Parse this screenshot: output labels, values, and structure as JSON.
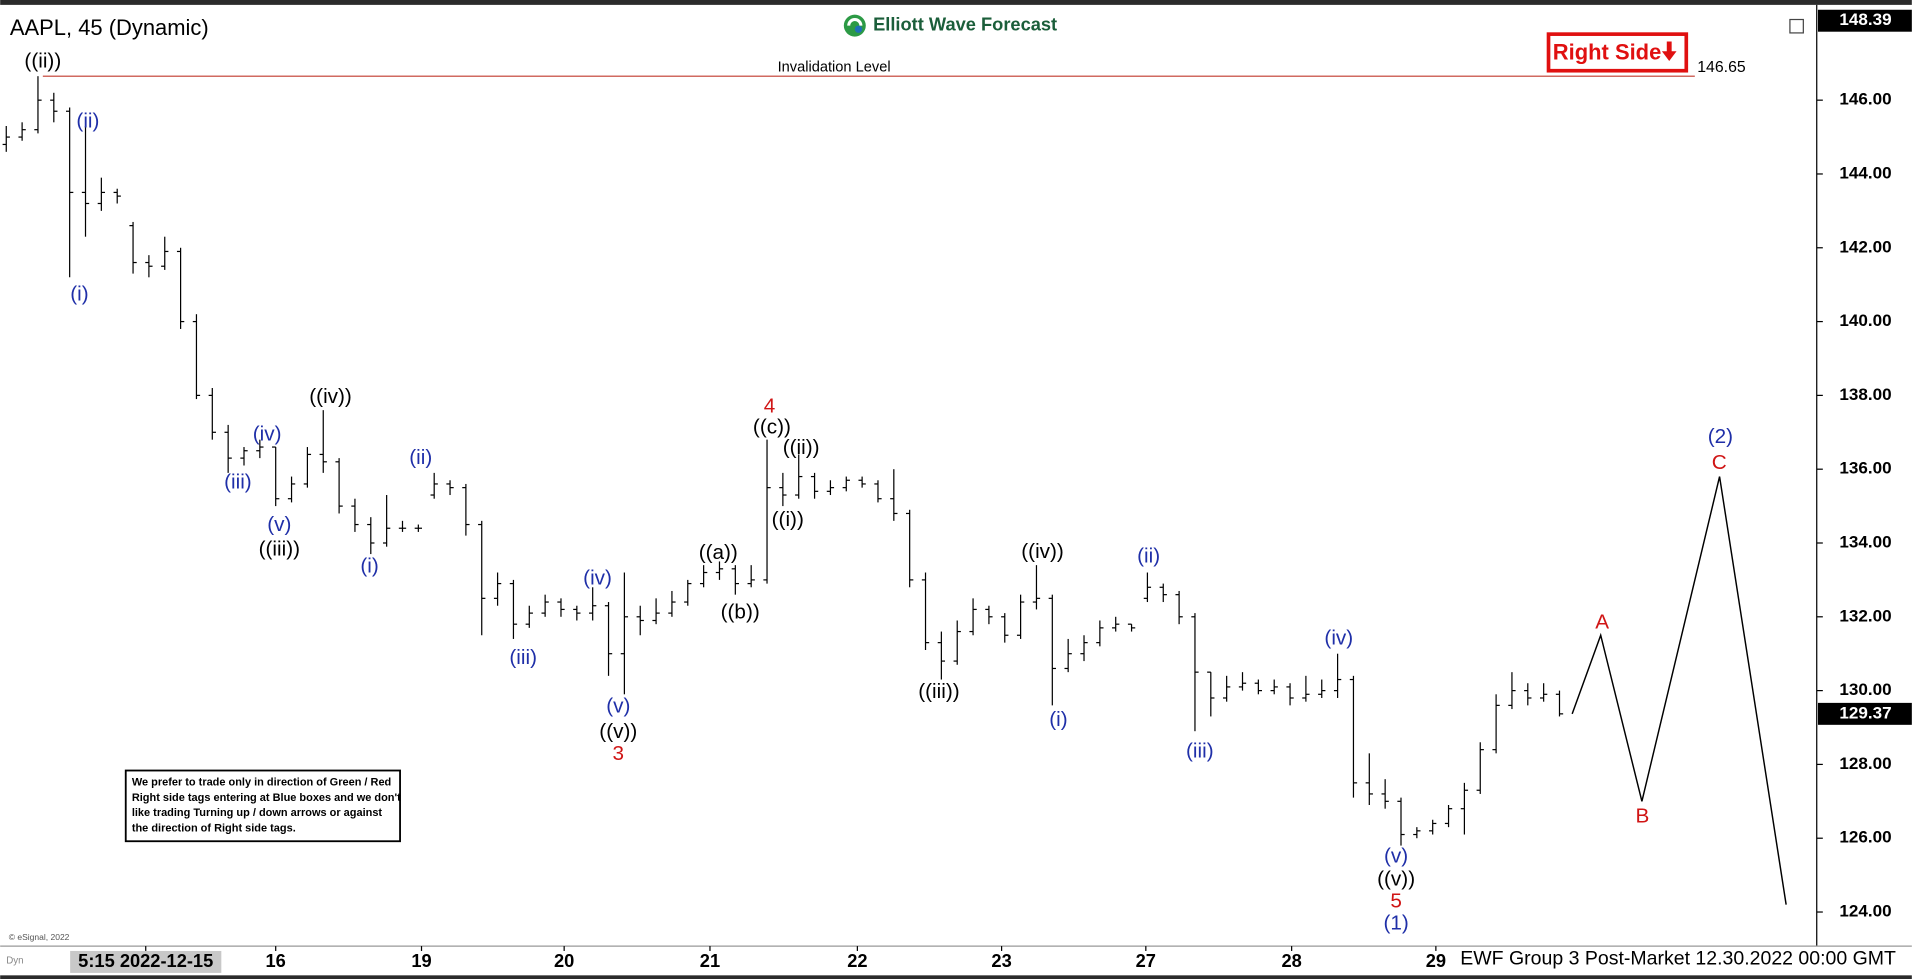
{
  "chart_data": {
    "type": "ohlc",
    "title": "AAPL, 45 (Dynamic)",
    "brand": "Elliott Wave Forecast",
    "tag": "Right Side",
    "footer": "EWF Group 3 Post-Market 12.30.2022 00:00 GMT",
    "copyright": "© eSignal, 2022",
    "corner": "Dyn",
    "note": [
      "We prefer to trade only in direction of Green / Red",
      "Right side tags entering at Blue boxes and we don't",
      "like trading Turning up / down arrows or against",
      "the direction of Right side tags."
    ],
    "bar_color": "#000000",
    "xlim": [
      0,
      114
    ],
    "ylim": [
      123.11,
      148.45
    ],
    "xticks": [
      {
        "value": 8.8,
        "label": "5:15 2022-12-15"
      },
      {
        "value": 17,
        "label": "16"
      },
      {
        "value": 26.2,
        "label": "19"
      },
      {
        "value": 35.2,
        "label": "20"
      },
      {
        "value": 44.4,
        "label": "21"
      },
      {
        "value": 53.7,
        "label": "22"
      },
      {
        "value": 62.8,
        "label": "23"
      },
      {
        "value": 71.9,
        "label": "27"
      },
      {
        "value": 81.1,
        "label": "28"
      },
      {
        "value": 90.2,
        "label": "29"
      }
    ],
    "yticks": [
      {
        "value": 124,
        "label": "124.00"
      },
      {
        "value": 126,
        "label": "126.00"
      },
      {
        "value": 128,
        "label": "128.00"
      },
      {
        "value": 130,
        "label": "130.00"
      },
      {
        "value": 132,
        "label": "132.00"
      },
      {
        "value": 134,
        "label": "134.00"
      },
      {
        "value": 136,
        "label": "136.00"
      },
      {
        "value": 138,
        "label": "138.00"
      },
      {
        "value": 140,
        "label": "140.00"
      },
      {
        "value": 142,
        "label": "142.00"
      },
      {
        "value": 144,
        "label": "144.00"
      },
      {
        "value": 146,
        "label": "146.00"
      }
    ],
    "price_markers": [
      148.39,
      129.37
    ],
    "invalidation": {
      "label": "Invalidation Level",
      "value": 146.65,
      "color": "#c0392b"
    },
    "bars": [
      [
        144.8,
        145.3,
        144.6,
        145.0
      ],
      [
        145.0,
        145.4,
        144.9,
        145.2
      ],
      [
        145.2,
        146.65,
        145.1,
        146.0
      ],
      [
        146.0,
        146.2,
        145.4,
        145.7
      ],
      [
        145.7,
        145.8,
        141.2,
        143.5
      ],
      [
        143.5,
        145.3,
        142.3,
        143.2
      ],
      [
        143.2,
        143.9,
        143.0,
        143.5
      ],
      [
        143.5,
        143.6,
        143.2,
        143.4
      ],
      [
        142.6,
        142.7,
        141.3,
        141.6
      ],
      [
        141.6,
        141.8,
        141.2,
        141.5
      ],
      [
        141.5,
        142.3,
        141.4,
        141.9
      ],
      [
        141.9,
        142.0,
        139.8,
        140.0
      ],
      [
        140.0,
        140.2,
        137.9,
        138.0
      ],
      [
        138.0,
        138.2,
        136.8,
        137.0
      ],
      [
        137.0,
        137.2,
        135.9,
        136.3
      ],
      [
        136.3,
        136.6,
        136.1,
        136.5
      ],
      [
        136.5,
        136.8,
        136.3,
        136.6
      ],
      [
        136.6,
        136.6,
        135.0,
        135.2
      ],
      [
        135.2,
        135.8,
        135.1,
        135.6
      ],
      [
        135.6,
        136.6,
        135.5,
        136.4
      ],
      [
        136.4,
        137.6,
        135.9,
        136.2
      ],
      [
        136.2,
        136.3,
        134.8,
        135.0
      ],
      [
        135.0,
        135.2,
        134.3,
        134.5
      ],
      [
        134.5,
        134.7,
        133.7,
        134.0
      ],
      [
        134.0,
        135.3,
        133.9,
        134.4
      ],
      [
        134.4,
        134.6,
        134.3,
        134.4
      ],
      [
        134.4,
        134.5,
        134.3,
        134.4
      ],
      [
        135.3,
        135.9,
        135.2,
        135.6
      ],
      [
        135.6,
        135.7,
        135.3,
        135.5
      ],
      [
        135.5,
        135.6,
        134.2,
        134.5
      ],
      [
        134.5,
        134.6,
        131.5,
        132.5
      ],
      [
        132.5,
        133.2,
        132.3,
        132.9
      ],
      [
        132.9,
        133.0,
        131.4,
        131.8
      ],
      [
        131.8,
        132.3,
        131.7,
        132.1
      ],
      [
        132.1,
        132.6,
        132.0,
        132.4
      ],
      [
        132.4,
        132.5,
        132.0,
        132.2
      ],
      [
        132.2,
        132.3,
        131.9,
        132.1
      ],
      [
        132.1,
        132.8,
        131.9,
        132.3
      ],
      [
        132.3,
        132.4,
        130.4,
        131.0
      ],
      [
        131.0,
        133.2,
        129.9,
        132.0
      ],
      [
        132.0,
        132.3,
        131.5,
        131.9
      ],
      [
        131.9,
        132.5,
        131.8,
        132.1
      ],
      [
        132.1,
        132.7,
        132.0,
        132.4
      ],
      [
        132.4,
        133.0,
        132.3,
        132.9
      ],
      [
        132.9,
        133.4,
        132.8,
        133.2
      ],
      [
        133.2,
        133.5,
        133.0,
        133.3
      ],
      [
        133.3,
        133.4,
        132.6,
        132.9
      ],
      [
        132.9,
        133.4,
        132.8,
        133.0
      ],
      [
        133.0,
        136.8,
        132.9,
        135.5
      ],
      [
        135.5,
        135.9,
        135.0,
        135.3
      ],
      [
        135.3,
        136.4,
        135.2,
        135.8
      ],
      [
        135.8,
        135.9,
        135.2,
        135.4
      ],
      [
        135.4,
        135.7,
        135.3,
        135.5
      ],
      [
        135.5,
        135.8,
        135.4,
        135.7
      ],
      [
        135.7,
        135.8,
        135.5,
        135.6
      ],
      [
        135.6,
        135.7,
        135.1,
        135.2
      ],
      [
        135.2,
        136.0,
        134.6,
        134.8
      ],
      [
        134.8,
        134.9,
        132.8,
        133.0
      ],
      [
        133.0,
        133.2,
        131.1,
        131.3
      ],
      [
        131.3,
        131.6,
        130.3,
        130.8
      ],
      [
        130.8,
        131.9,
        130.7,
        131.6
      ],
      [
        131.6,
        132.5,
        131.5,
        132.2
      ],
      [
        132.2,
        132.3,
        131.8,
        132.0
      ],
      [
        132.0,
        132.1,
        131.3,
        131.5
      ],
      [
        131.5,
        132.6,
        131.4,
        132.4
      ],
      [
        132.4,
        133.4,
        132.2,
        132.5
      ],
      [
        132.5,
        132.6,
        129.6,
        130.6
      ],
      [
        130.6,
        131.4,
        130.5,
        131.0
      ],
      [
        131.0,
        131.5,
        130.8,
        131.3
      ],
      [
        131.3,
        131.9,
        131.2,
        131.7
      ],
      [
        131.7,
        132.0,
        131.6,
        131.8
      ],
      [
        131.8,
        131.8,
        131.6,
        131.7
      ],
      [
        132.5,
        133.2,
        132.4,
        132.8
      ],
      [
        132.8,
        132.9,
        132.4,
        132.6
      ],
      [
        132.6,
        132.7,
        131.8,
        132.0
      ],
      [
        132.0,
        132.1,
        128.9,
        130.5
      ],
      [
        130.5,
        130.5,
        129.3,
        129.8
      ],
      [
        129.8,
        130.4,
        129.7,
        130.1
      ],
      [
        130.1,
        130.5,
        130.0,
        130.2
      ],
      [
        130.2,
        130.3,
        129.9,
        130.0
      ],
      [
        130.0,
        130.3,
        129.9,
        130.1
      ],
      [
        130.1,
        130.2,
        129.6,
        129.8
      ],
      [
        129.8,
        130.4,
        129.7,
        129.9
      ],
      [
        129.9,
        130.3,
        129.8,
        130.0
      ],
      [
        130.0,
        131.0,
        129.8,
        130.3
      ],
      [
        130.3,
        130.4,
        127.1,
        127.5
      ],
      [
        127.5,
        128.3,
        126.9,
        127.2
      ],
      [
        127.2,
        127.6,
        126.8,
        127.0
      ],
      [
        127.0,
        127.1,
        125.8,
        126.1
      ],
      [
        126.1,
        126.3,
        126.0,
        126.2
      ],
      [
        126.2,
        126.5,
        126.1,
        126.4
      ],
      [
        126.4,
        126.9,
        126.3,
        126.8
      ],
      [
        126.8,
        127.5,
        126.1,
        127.3
      ],
      [
        127.3,
        128.6,
        127.2,
        128.4
      ],
      [
        128.4,
        129.9,
        128.3,
        129.6
      ],
      [
        129.6,
        130.5,
        129.5,
        130.0
      ],
      [
        130.0,
        130.2,
        129.6,
        129.8
      ],
      [
        129.8,
        130.2,
        129.7,
        129.9
      ],
      [
        129.9,
        130.0,
        129.3,
        129.37
      ]
    ],
    "projection": {
      "x": [
        98.8,
        100.6,
        103.2,
        108.1,
        112.3
      ],
      "values": [
        129.37,
        131.5,
        127.0,
        135.8,
        124.2
      ],
      "color": "#000000"
    },
    "annotations": [
      {
        "text": "((ii))",
        "color": "#000000"
      },
      {
        "text": "(ii)",
        "color": "#1f2fa8"
      },
      {
        "text": "(i)",
        "color": "#1f2fa8"
      },
      {
        "text": "(iv)",
        "color": "#1f2fa8"
      },
      {
        "text": "(iii)",
        "color": "#1f2fa8"
      },
      {
        "text": "(v)",
        "color": "#1f2fa8"
      },
      {
        "text": "((iii))",
        "color": "#000000"
      },
      {
        "text": "((iv))",
        "color": "#000000"
      },
      {
        "text": "(ii)",
        "color": "#1f2fa8"
      },
      {
        "text": "(i)",
        "color": "#1f2fa8"
      },
      {
        "text": "(iii)",
        "color": "#1f2fa8"
      },
      {
        "text": "(iv)",
        "color": "#1f2fa8"
      },
      {
        "text": "(v)",
        "color": "#1f2fa8"
      },
      {
        "text": "((v))",
        "color": "#000000"
      },
      {
        "text": "3",
        "color": "#d01515"
      },
      {
        "text": "4",
        "color": "#d01515"
      },
      {
        "text": "((c))",
        "color": "#000000"
      },
      {
        "text": "((ii))",
        "color": "#000000"
      },
      {
        "text": "((i))",
        "color": "#000000"
      },
      {
        "text": "((a))",
        "color": "#000000"
      },
      {
        "text": "((b))",
        "color": "#000000"
      },
      {
        "text": "((iv))",
        "color": "#000000"
      },
      {
        "text": "((iii))",
        "color": "#000000"
      },
      {
        "text": "(i)",
        "color": "#1f2fa8"
      },
      {
        "text": "(ii)",
        "color": "#1f2fa8"
      },
      {
        "text": "(iii)",
        "color": "#1f2fa8"
      },
      {
        "text": "(iv)",
        "color": "#1f2fa8"
      },
      {
        "text": "(v)",
        "color": "#1f2fa8"
      },
      {
        "text": "((v))",
        "color": "#000000"
      },
      {
        "text": "5",
        "color": "#d01515"
      },
      {
        "text": "(1)",
        "color": "#1f2fa8"
      },
      {
        "text": "A",
        "color": "#d01515"
      },
      {
        "text": "B",
        "color": "#d01515"
      },
      {
        "text": "(2)",
        "color": "#1f2fa8"
      },
      {
        "text": "C",
        "color": "#d01515"
      }
    ]
  }
}
